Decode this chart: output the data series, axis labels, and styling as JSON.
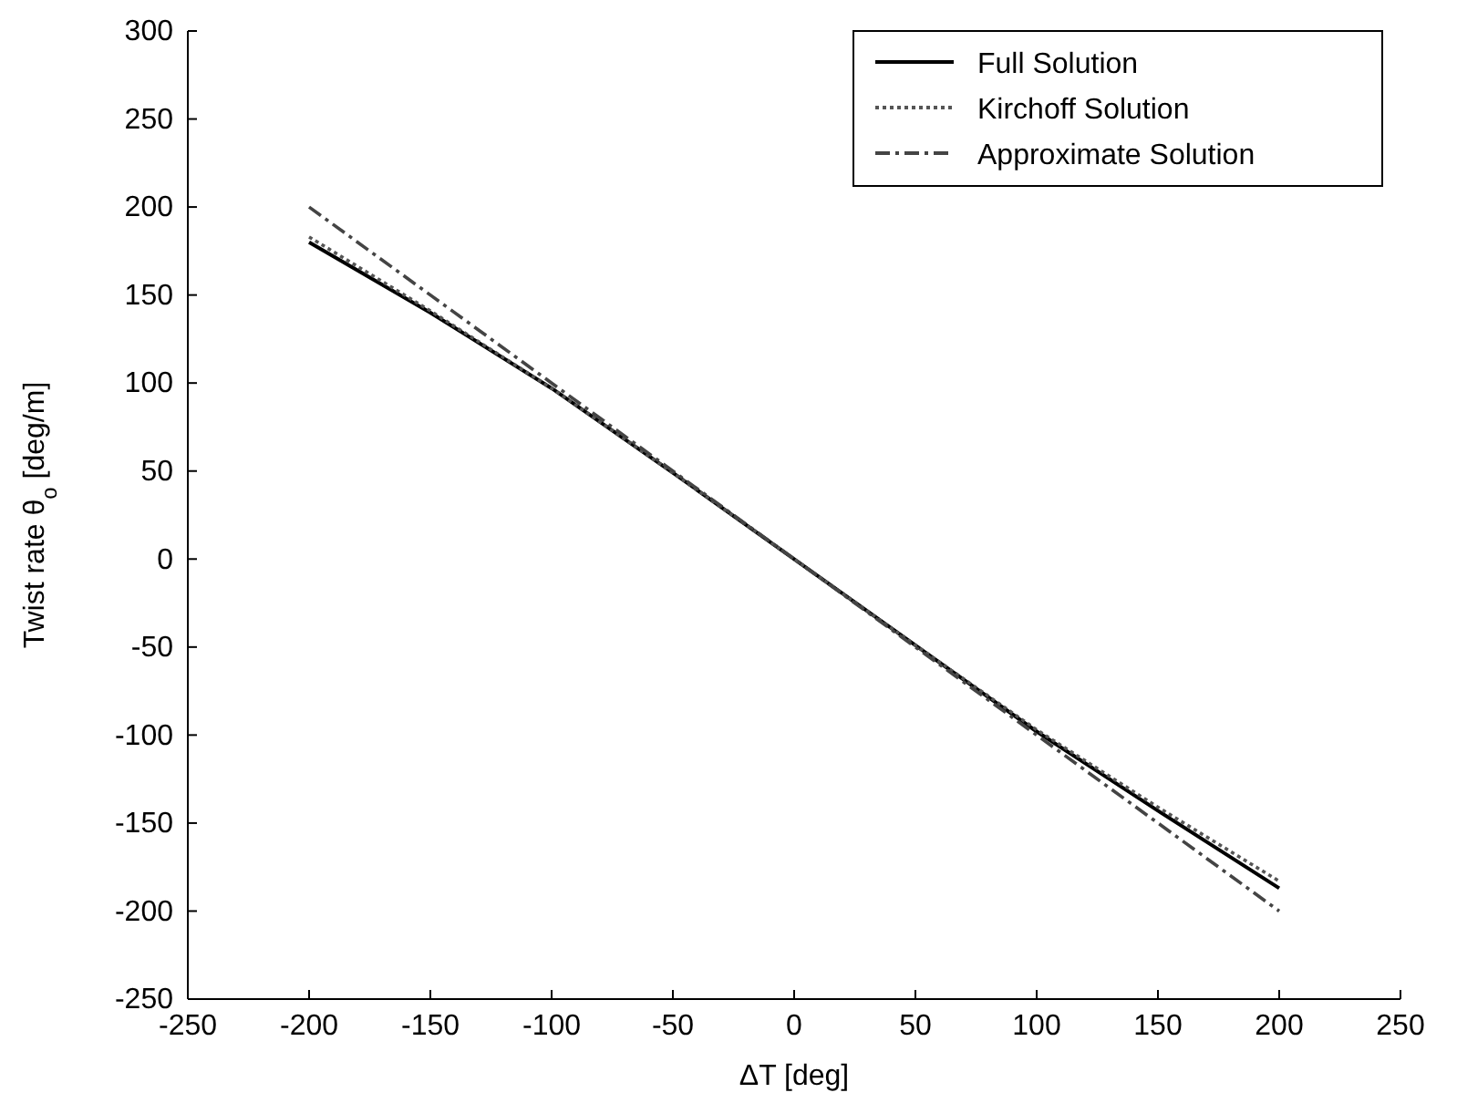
{
  "chart_data": {
    "type": "line",
    "xlabel": "ΔT [deg]",
    "ylabel": "Twist rate θ$_{o}$ [deg/m]",
    "x": [
      -200,
      -150,
      -100,
      -50,
      0,
      50,
      100,
      150,
      200
    ],
    "series": [
      {
        "name": "Full Solution",
        "color": "#000000",
        "line_style": "solid",
        "values": [
          180,
          140,
          97,
          49,
          0,
          -49,
          -98,
          -143,
          -187
        ]
      },
      {
        "name": "Kirchoff Solution",
        "color": "#555555",
        "line_style": "dotted",
        "values": [
          183,
          141,
          97,
          49,
          0,
          -49,
          -97,
          -141,
          -183
        ]
      },
      {
        "name": "Approximate Solution",
        "color": "#444444",
        "line_style": "dashdot",
        "values": [
          200,
          150,
          100,
          50,
          0,
          -50,
          -100,
          -150,
          -200
        ]
      }
    ],
    "xlim": [
      -250,
      250
    ],
    "xticks": [
      -250,
      -200,
      -150,
      -100,
      -50,
      0,
      50,
      100,
      150,
      200,
      250
    ],
    "ylim": [
      -250,
      300
    ],
    "yticks": [
      -250,
      -200,
      -150,
      -100,
      -50,
      0,
      50,
      100,
      150,
      200,
      250,
      300
    ],
    "grid": false,
    "legend": "top right",
    "marker": "none"
  }
}
